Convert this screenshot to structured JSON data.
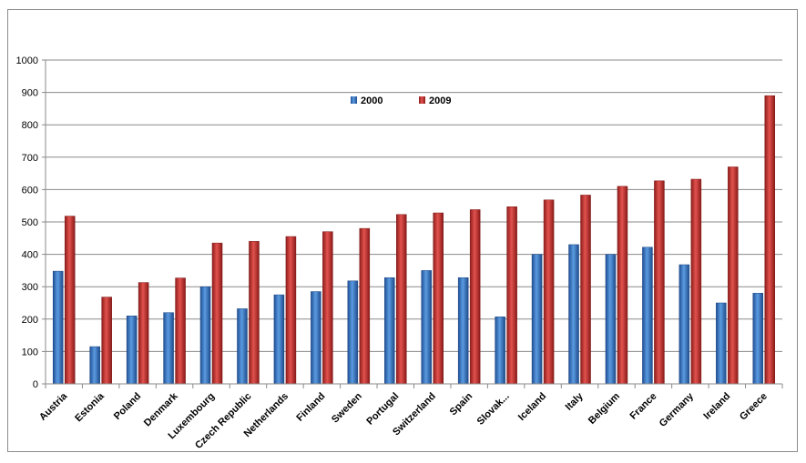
{
  "chart_data": {
    "type": "bar",
    "categories": [
      "Austria",
      "Estonia",
      "Poland",
      "Denmark",
      "Luxembourg",
      "Czech Republic",
      "Netherlands",
      "Finland",
      "Sweden",
      "Portugal",
      "Switzerland",
      "Spain",
      "Slovak...",
      "Iceland",
      "Italy",
      "Belgium",
      "France",
      "Germany",
      "Ireland",
      "Greece"
    ],
    "series": [
      {
        "name": "2000",
        "color": "#2f6fbf",
        "values": [
          348,
          115,
          210,
          220,
          300,
          232,
          275,
          285,
          318,
          328,
          350,
          328,
          207,
          400,
          430,
          400,
          422,
          368,
          250,
          280
        ]
      },
      {
        "name": "2009",
        "color": "#c0302e",
        "values": [
          518,
          268,
          313,
          327,
          435,
          440,
          455,
          470,
          480,
          523,
          528,
          538,
          547,
          568,
          583,
          610,
          627,
          632,
          670,
          890
        ]
      }
    ],
    "ylim": [
      0,
      1000
    ],
    "yticks": [
      0,
      100,
      200,
      300,
      400,
      500,
      600,
      700,
      800,
      900,
      1000
    ],
    "grid": true,
    "legend_position": "top-center"
  }
}
